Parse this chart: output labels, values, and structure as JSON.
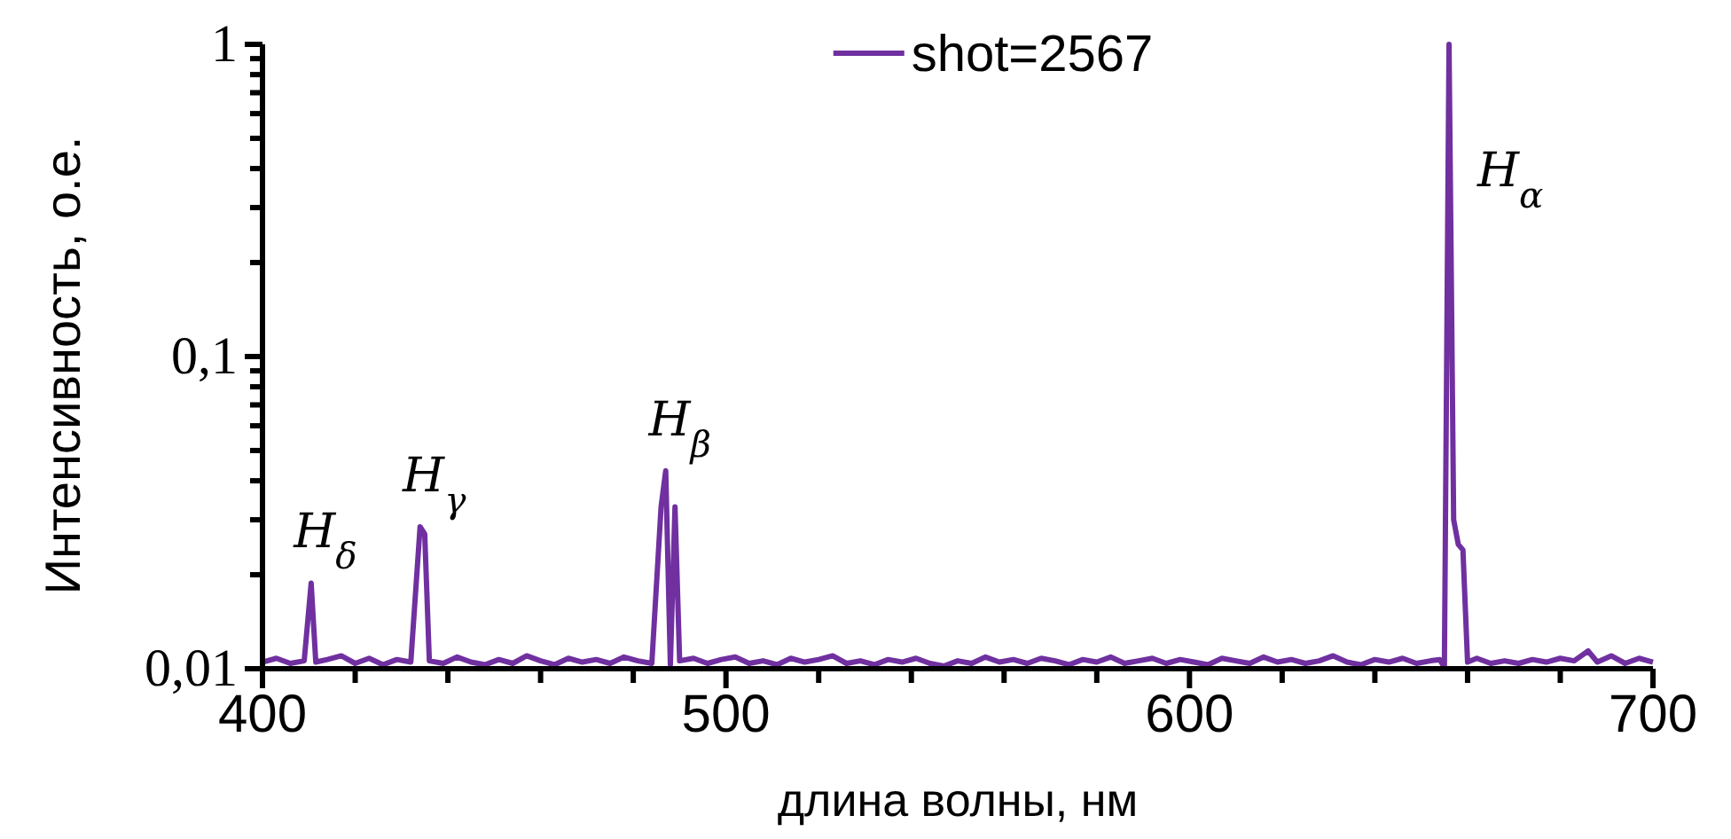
{
  "chart_data": {
    "type": "line",
    "xlabel": "длина волны, нм",
    "ylabel": "Интенсивность,  о.е.",
    "log": "y",
    "legend": "top",
    "xlim": [
      400,
      700
    ],
    "ylim": [
      0.01,
      1
    ],
    "xticks": [
      400,
      {
        "value": 420,
        "label": null
      },
      {
        "value": 440,
        "label": null
      },
      {
        "value": 460,
        "label": null
      },
      {
        "value": 480,
        "label": null
      },
      500,
      {
        "value": 520,
        "label": null
      },
      {
        "value": 540,
        "label": null
      },
      {
        "value": 560,
        "label": null
      },
      {
        "value": 580,
        "label": null
      },
      600,
      {
        "value": 620,
        "label": null
      },
      {
        "value": 640,
        "label": null
      },
      {
        "value": 660,
        "label": null
      },
      {
        "value": 680,
        "label": null
      },
      700
    ],
    "yticks": [
      {
        "value": 0.01,
        "label": "0,01"
      },
      {
        "value": 0.02,
        "label": null
      },
      {
        "value": 0.03,
        "label": null
      },
      {
        "value": 0.04,
        "label": null
      },
      {
        "value": 0.05,
        "label": null
      },
      {
        "value": 0.06,
        "label": null
      },
      {
        "value": 0.07,
        "label": null
      },
      {
        "value": 0.08,
        "label": null
      },
      {
        "value": 0.09,
        "label": null
      },
      {
        "value": 0.1,
        "label": "0,1"
      },
      {
        "value": 0.2,
        "label": null
      },
      {
        "value": 0.3,
        "label": null
      },
      {
        "value": 0.4,
        "label": null
      },
      {
        "value": 0.5,
        "label": null
      },
      {
        "value": 0.6,
        "label": null
      },
      {
        "value": 0.7,
        "label": null
      },
      {
        "value": 0.8,
        "label": null
      },
      {
        "value": 0.9,
        "label": null
      },
      {
        "value": 1,
        "label": "1"
      }
    ],
    "annotations": [
      {
        "text": "H$_{δ}$",
        "x": 410.5,
        "y": 0.0188
      },
      {
        "text": "H$_{γ}$",
        "x": 434,
        "y": 0.0285
      },
      {
        "text": "H$_{β}$",
        "x": 487,
        "y": 0.0431
      },
      {
        "text": "H$_{α}$",
        "x": 656,
        "y": 1
      }
    ],
    "series": [
      {
        "name": "shot=2567",
        "color": "#7030a0",
        "x": [
          400,
          403,
          406,
          409,
          410.5,
          411.5,
          414,
          417,
          420,
          423,
          426,
          429,
          432,
          434,
          435,
          436,
          439,
          442,
          445,
          448,
          451,
          454,
          457,
          460,
          463,
          466,
          469,
          472,
          475,
          478,
          481,
          484,
          486,
          487,
          488,
          489,
          490,
          493,
          496,
          499,
          502,
          505,
          508,
          511,
          514,
          517,
          520,
          523,
          526,
          529,
          532,
          535,
          538,
          541,
          544,
          547,
          550,
          553,
          556,
          559,
          562,
          565,
          568,
          571,
          574,
          577,
          580,
          583,
          586,
          589,
          592,
          595,
          598,
          601,
          604,
          607,
          610,
          613,
          616,
          619,
          622,
          625,
          628,
          631,
          634,
          637,
          640,
          643,
          646,
          649,
          652,
          654,
          655,
          656,
          657,
          658,
          659,
          660,
          662,
          665,
          668,
          671,
          674,
          677,
          680,
          683,
          686,
          688,
          691,
          694,
          697,
          700
        ],
        "values": [
          0.0105,
          0.0108,
          0.0104,
          0.0106,
          0.0188,
          0.0105,
          0.0107,
          0.011,
          0.0104,
          0.0108,
          0.0103,
          0.0107,
          0.0105,
          0.0285,
          0.027,
          0.0106,
          0.0104,
          0.0109,
          0.0105,
          0.0103,
          0.0107,
          0.0104,
          0.011,
          0.0106,
          0.0103,
          0.0108,
          0.0105,
          0.0107,
          0.0104,
          0.0109,
          0.0106,
          0.0104,
          0.033,
          0.0431,
          0.0103,
          0.033,
          0.0106,
          0.0108,
          0.0104,
          0.0107,
          0.0109,
          0.0104,
          0.0106,
          0.0103,
          0.0108,
          0.0105,
          0.0107,
          0.011,
          0.0104,
          0.0106,
          0.0103,
          0.0107,
          0.0105,
          0.0108,
          0.0104,
          0.0102,
          0.0106,
          0.0104,
          0.0109,
          0.0105,
          0.0107,
          0.0104,
          0.0108,
          0.0106,
          0.0103,
          0.0107,
          0.0105,
          0.0109,
          0.0104,
          0.0106,
          0.0108,
          0.0104,
          0.0107,
          0.0105,
          0.0103,
          0.0108,
          0.0106,
          0.0104,
          0.0109,
          0.0105,
          0.0107,
          0.0104,
          0.0106,
          0.011,
          0.0105,
          0.0103,
          0.0107,
          0.0105,
          0.0108,
          0.0104,
          0.0106,
          0.0107,
          0.0101,
          1,
          0.03,
          0.025,
          0.024,
          0.0105,
          0.0108,
          0.0104,
          0.0106,
          0.0104,
          0.0107,
          0.0105,
          0.0108,
          0.0106,
          0.0114,
          0.0105,
          0.011,
          0.0104,
          0.0108,
          0.0105
        ]
      }
    ]
  }
}
